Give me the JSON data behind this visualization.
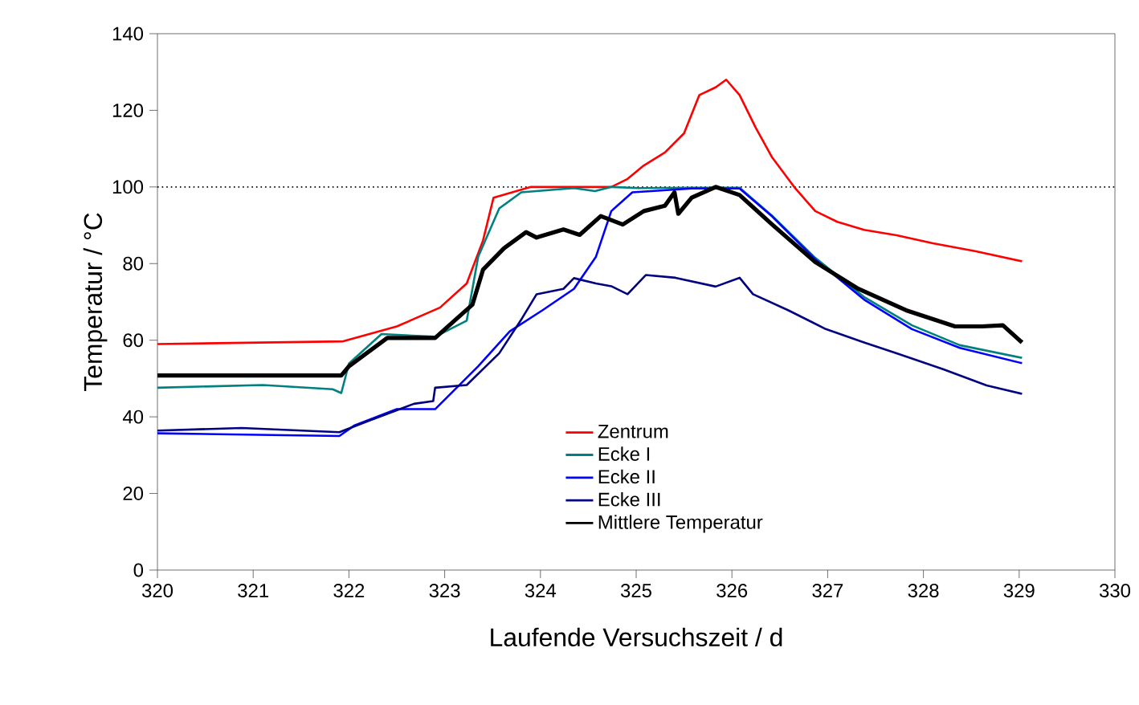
{
  "chart_data": {
    "type": "line",
    "xlabel": "Laufende Versuchszeit / d",
    "ylabel": "Temperatur / °C",
    "xlim": [
      320,
      330
    ],
    "ylim": [
      0,
      140
    ],
    "xticks": [
      320,
      321,
      322,
      323,
      324,
      325,
      326,
      327,
      328,
      329,
      330
    ],
    "yticks": [
      0,
      20,
      40,
      60,
      80,
      100,
      120,
      140
    ],
    "grid": false,
    "legend": "bottom",
    "marker": "none",
    "line_style": "solid",
    "ref_lines": [
      {
        "axis": "y",
        "value": 100,
        "color": "#000000",
        "line_style": "dotted"
      }
    ],
    "series": [
      {
        "name": "Zentrum",
        "color": "#ff0000",
        "x": [
          320,
          321.94,
          322.5,
          322.95,
          323.23,
          323.4,
          323.51,
          323.9,
          324.3,
          324.74,
          324.91,
          325.08,
          325.3,
          325.5,
          325.66,
          325.83,
          325.94,
          326.08,
          326.25,
          326.42,
          326.65,
          326.87,
          327.1,
          327.38,
          327.72,
          328.1,
          328.55,
          329.03
        ],
        "values": [
          59,
          59.7,
          63.6,
          68.5,
          74.8,
          86,
          97.2,
          100,
          100,
          100,
          102.1,
          105.6,
          109,
          114,
          124,
          126,
          128,
          124,
          115.4,
          107.7,
          100,
          93.7,
          90.9,
          88.8,
          87.4,
          85.3,
          83.2,
          80.6
        ]
      },
      {
        "name": "Ecke I",
        "color": "#008080",
        "x": [
          320,
          321.1,
          321.83,
          321.92,
          322,
          322.34,
          322.9,
          323.23,
          323.35,
          323.57,
          323.8,
          324.35,
          324.57,
          324.74,
          325.03,
          325.58,
          326.08,
          326.42,
          326.87,
          327.38,
          327.88,
          328.38,
          329.03
        ],
        "values": [
          47.6,
          48.3,
          47.2,
          46.2,
          53.9,
          61.6,
          60.9,
          65.1,
          81.8,
          94.4,
          98.6,
          99.7,
          98.9,
          100,
          99.7,
          99.8,
          99.8,
          92.5,
          81.5,
          71.3,
          63.9,
          58.7,
          55.4
        ]
      },
      {
        "name": "Ecke II",
        "color": "#0000ff",
        "x": [
          320,
          321.9,
          322.06,
          322.5,
          322.9,
          323.35,
          323.68,
          324.02,
          324.35,
          324.58,
          324.74,
          324.96,
          325.58,
          326.08,
          326.42,
          326.87,
          327.38,
          327.88,
          328.38,
          329.03
        ],
        "values": [
          35.7,
          35,
          37.8,
          42,
          42,
          53.2,
          62.3,
          67.8,
          73.4,
          81.8,
          93.7,
          98.6,
          99.6,
          99.6,
          92.3,
          81.1,
          70.6,
          62.9,
          58,
          54
        ]
      },
      {
        "name": "Ecke III",
        "color": "#000080",
        "x": [
          320,
          320.88,
          321.9,
          322.23,
          322.68,
          322.88,
          322.9,
          323.23,
          323.57,
          323.79,
          323.96,
          324.24,
          324.35,
          324.58,
          324.74,
          324.91,
          325.1,
          325.41,
          325.83,
          326.08,
          326.22,
          326.59,
          326.98,
          327.38,
          327.72,
          327.88,
          328.21,
          328.66,
          329.03
        ],
        "values": [
          36.4,
          37.1,
          36,
          39.2,
          43.4,
          44.1,
          47.6,
          48.3,
          56.6,
          65,
          72,
          73.4,
          76.2,
          74.8,
          74.1,
          72,
          77,
          76.3,
          74,
          76.3,
          72,
          67.8,
          62.9,
          59.4,
          56.6,
          55.2,
          52.4,
          48.2,
          46
        ]
      },
      {
        "name": "Mittlere Temperatur",
        "color": "#000000",
        "x": [
          320,
          321.92,
          322,
          322.4,
          322.9,
          323.29,
          323.4,
          323.62,
          323.85,
          323.96,
          324.24,
          324.41,
          324.63,
          324.86,
          325.08,
          325.3,
          325.4,
          325.44,
          325.58,
          325.83,
          326.08,
          326.42,
          326.87,
          327.32,
          327.82,
          328.33,
          328.61,
          328.83,
          329.03
        ],
        "values": [
          50.8,
          50.8,
          53.2,
          60.6,
          60.6,
          69.3,
          78.4,
          84,
          88.2,
          86.8,
          88.9,
          87.5,
          92.4,
          90.2,
          93.7,
          95.1,
          98.6,
          93,
          97.2,
          100,
          97.9,
          90.2,
          80.4,
          73.4,
          67.8,
          63.6,
          63.6,
          63.9,
          59.4
        ]
      }
    ]
  }
}
